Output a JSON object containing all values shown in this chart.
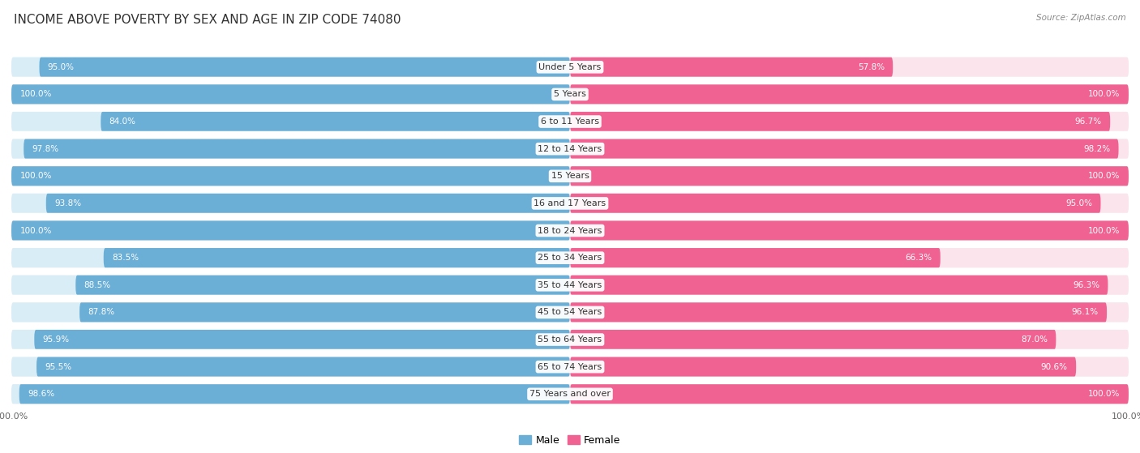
{
  "title": "INCOME ABOVE POVERTY BY SEX AND AGE IN ZIP CODE 74080",
  "source": "Source: ZipAtlas.com",
  "categories": [
    "Under 5 Years",
    "5 Years",
    "6 to 11 Years",
    "12 to 14 Years",
    "15 Years",
    "16 and 17 Years",
    "18 to 24 Years",
    "25 to 34 Years",
    "35 to 44 Years",
    "45 to 54 Years",
    "55 to 64 Years",
    "65 to 74 Years",
    "75 Years and over"
  ],
  "male_values": [
    95.0,
    100.0,
    84.0,
    97.8,
    100.0,
    93.8,
    100.0,
    83.5,
    88.5,
    87.8,
    95.9,
    95.5,
    98.6
  ],
  "female_values": [
    57.8,
    100.0,
    96.7,
    98.2,
    100.0,
    95.0,
    100.0,
    66.3,
    96.3,
    96.1,
    87.0,
    90.6,
    100.0
  ],
  "male_color": "#6baed6",
  "female_color": "#f06292",
  "male_light_color": "#d9edf7",
  "female_light_color": "#fce4ec",
  "background_color": "#ffffff",
  "row_bg_color": "#f0f0f0",
  "title_fontsize": 11,
  "label_fontsize": 8,
  "axis_label_fontsize": 8,
  "legend_fontsize": 9,
  "value_fontsize": 7.5
}
